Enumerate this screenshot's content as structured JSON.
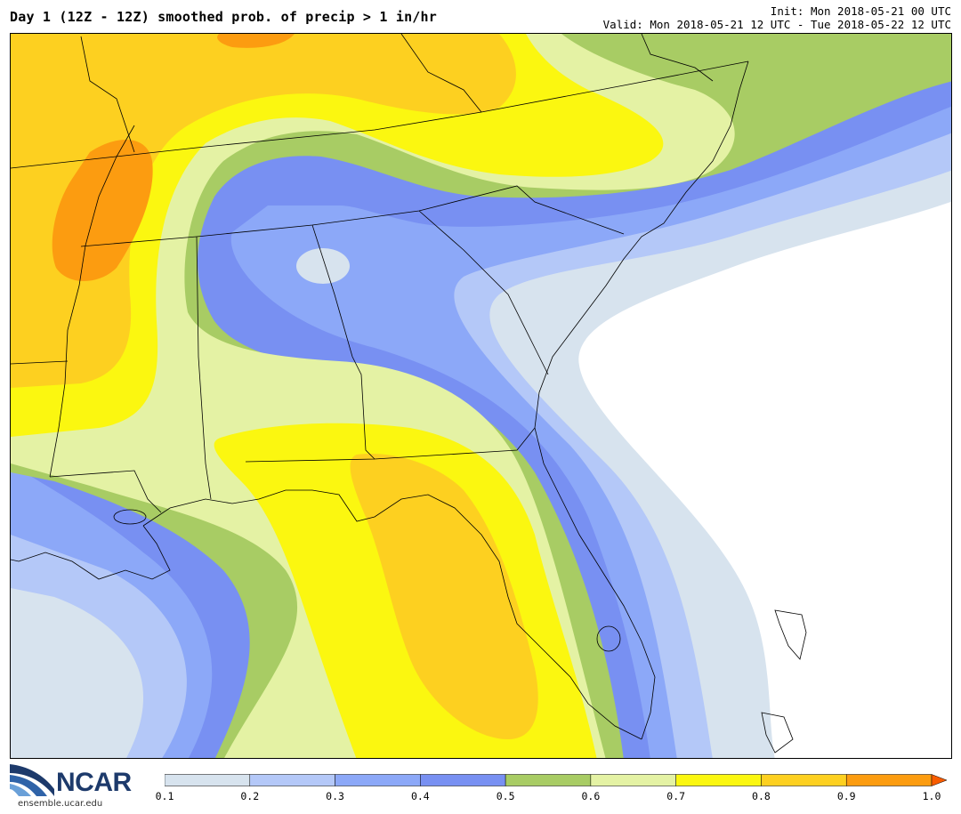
{
  "header": {
    "title": "Day 1 (12Z - 12Z) smoothed prob. of precip > 1 in/hr",
    "init": "Init: Mon 2018-05-21 00 UTC",
    "valid": "Valid: Mon 2018-05-21 12 UTC - Tue 2018-05-22 12 UTC"
  },
  "logo": {
    "wordmark": "NCAR",
    "url": "ensemble.ucar.edu"
  },
  "colorbar": {
    "levels": [
      "0.1",
      "0.2",
      "0.3",
      "0.4",
      "0.5",
      "0.6",
      "0.7",
      "0.8",
      "0.9",
      "1.0"
    ],
    "colors": [
      "#d7e3ee",
      "#b4c8f8",
      "#8ca8f8",
      "#7890f2",
      "#a8cc64",
      "#e4f2a4",
      "#fbf710",
      "#fdd020",
      "#fc9c10",
      "#f85c00"
    ]
  }
}
